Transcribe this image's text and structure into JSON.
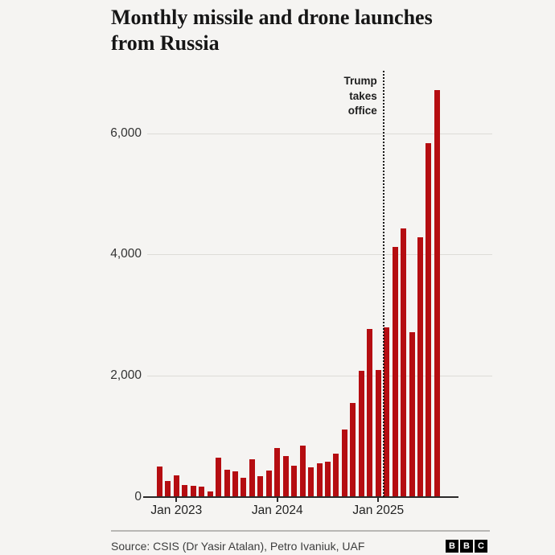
{
  "title": {
    "text": "Monthly missile and drone launches from Russia",
    "line1": "Monthly missile and drone launches",
    "line2": "from Russia"
  },
  "chart_data": {
    "type": "bar",
    "bar_color": "#b50d11",
    "grid": "horizontal",
    "ylim": [
      0,
      6900
    ],
    "categories": [
      "Nov 2022",
      "Dec 2022",
      "Jan 2023",
      "Feb 2023",
      "Mar 2023",
      "Apr 2023",
      "May 2023",
      "Jun 2023",
      "Jul 2023",
      "Aug 2023",
      "Sep 2023",
      "Oct 2023",
      "Nov 2023",
      "Dec 2023",
      "Jan 2024",
      "Feb 2024",
      "Mar 2024",
      "Apr 2024",
      "May 2024",
      "Jun 2024",
      "Jul 2024",
      "Aug 2024",
      "Sep 2024",
      "Oct 2024",
      "Nov 2024",
      "Dec 2024",
      "Jan 2025",
      "Feb 2025",
      "Mar 2025",
      "Apr 2025",
      "May 2025",
      "Jun 2025",
      "Jul 2025",
      "Aug 2025"
    ],
    "values": [
      510,
      260,
      360,
      205,
      180,
      170,
      95,
      650,
      450,
      430,
      315,
      625,
      345,
      435,
      810,
      670,
      515,
      850,
      495,
      560,
      585,
      720,
      1110,
      1550,
      2080,
      2770,
      2090,
      2805,
      4130,
      4430,
      2720,
      4290,
      5840,
      6715
    ],
    "y_ticks": [
      {
        "label": "6,000",
        "value": 6000
      },
      {
        "label": "4,000",
        "value": 4000
      },
      {
        "label": "2,000",
        "value": 2000
      },
      {
        "label": "0",
        "value": 0
      }
    ],
    "x_ticks": [
      {
        "label": "Jan 2023",
        "index": 2
      },
      {
        "label": "Jan 2024",
        "index": 14
      },
      {
        "label": "Jan 2025",
        "index": 26
      }
    ],
    "annotation": {
      "text": "Trump takes office",
      "lines": [
        "Trump",
        "takes",
        "office"
      ],
      "x_index": 26.63,
      "marker": "dotted-vertical-line"
    }
  },
  "footer": {
    "source": "Source: CSIS (Dr Yasir Atalan), Petro Ivaniuk, UAF",
    "logo_blocks": [
      "B",
      "B",
      "C"
    ]
  }
}
